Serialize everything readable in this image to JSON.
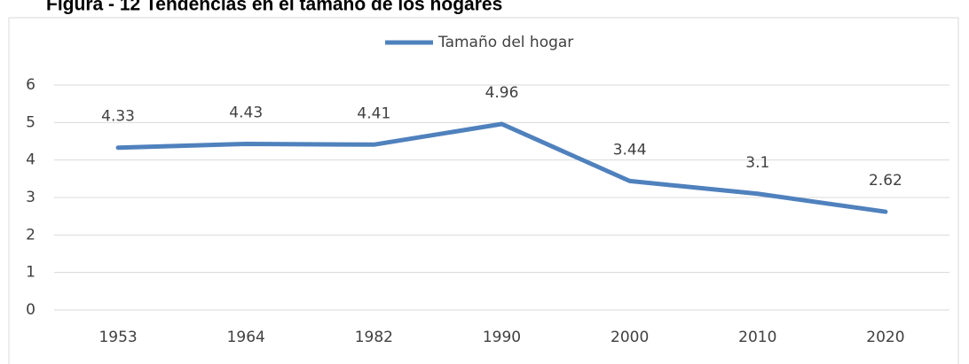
{
  "chart_data": {
    "type": "line",
    "title": "Figura - 12 Tendencias en el tamaño de los hogares",
    "categories": [
      "1953",
      "1964",
      "1982",
      "1990",
      "2000",
      "2010",
      "2020"
    ],
    "series": [
      {
        "name": "Tamaño del hogar",
        "color": "#4f81bd",
        "values": [
          4.33,
          4.43,
          4.41,
          4.96,
          3.44,
          3.1,
          2.62
        ]
      }
    ],
    "ylim": [
      0,
      6
    ],
    "yticks": [
      0,
      1,
      2,
      3,
      4,
      5,
      6
    ],
    "grid": true,
    "legend": "top"
  }
}
